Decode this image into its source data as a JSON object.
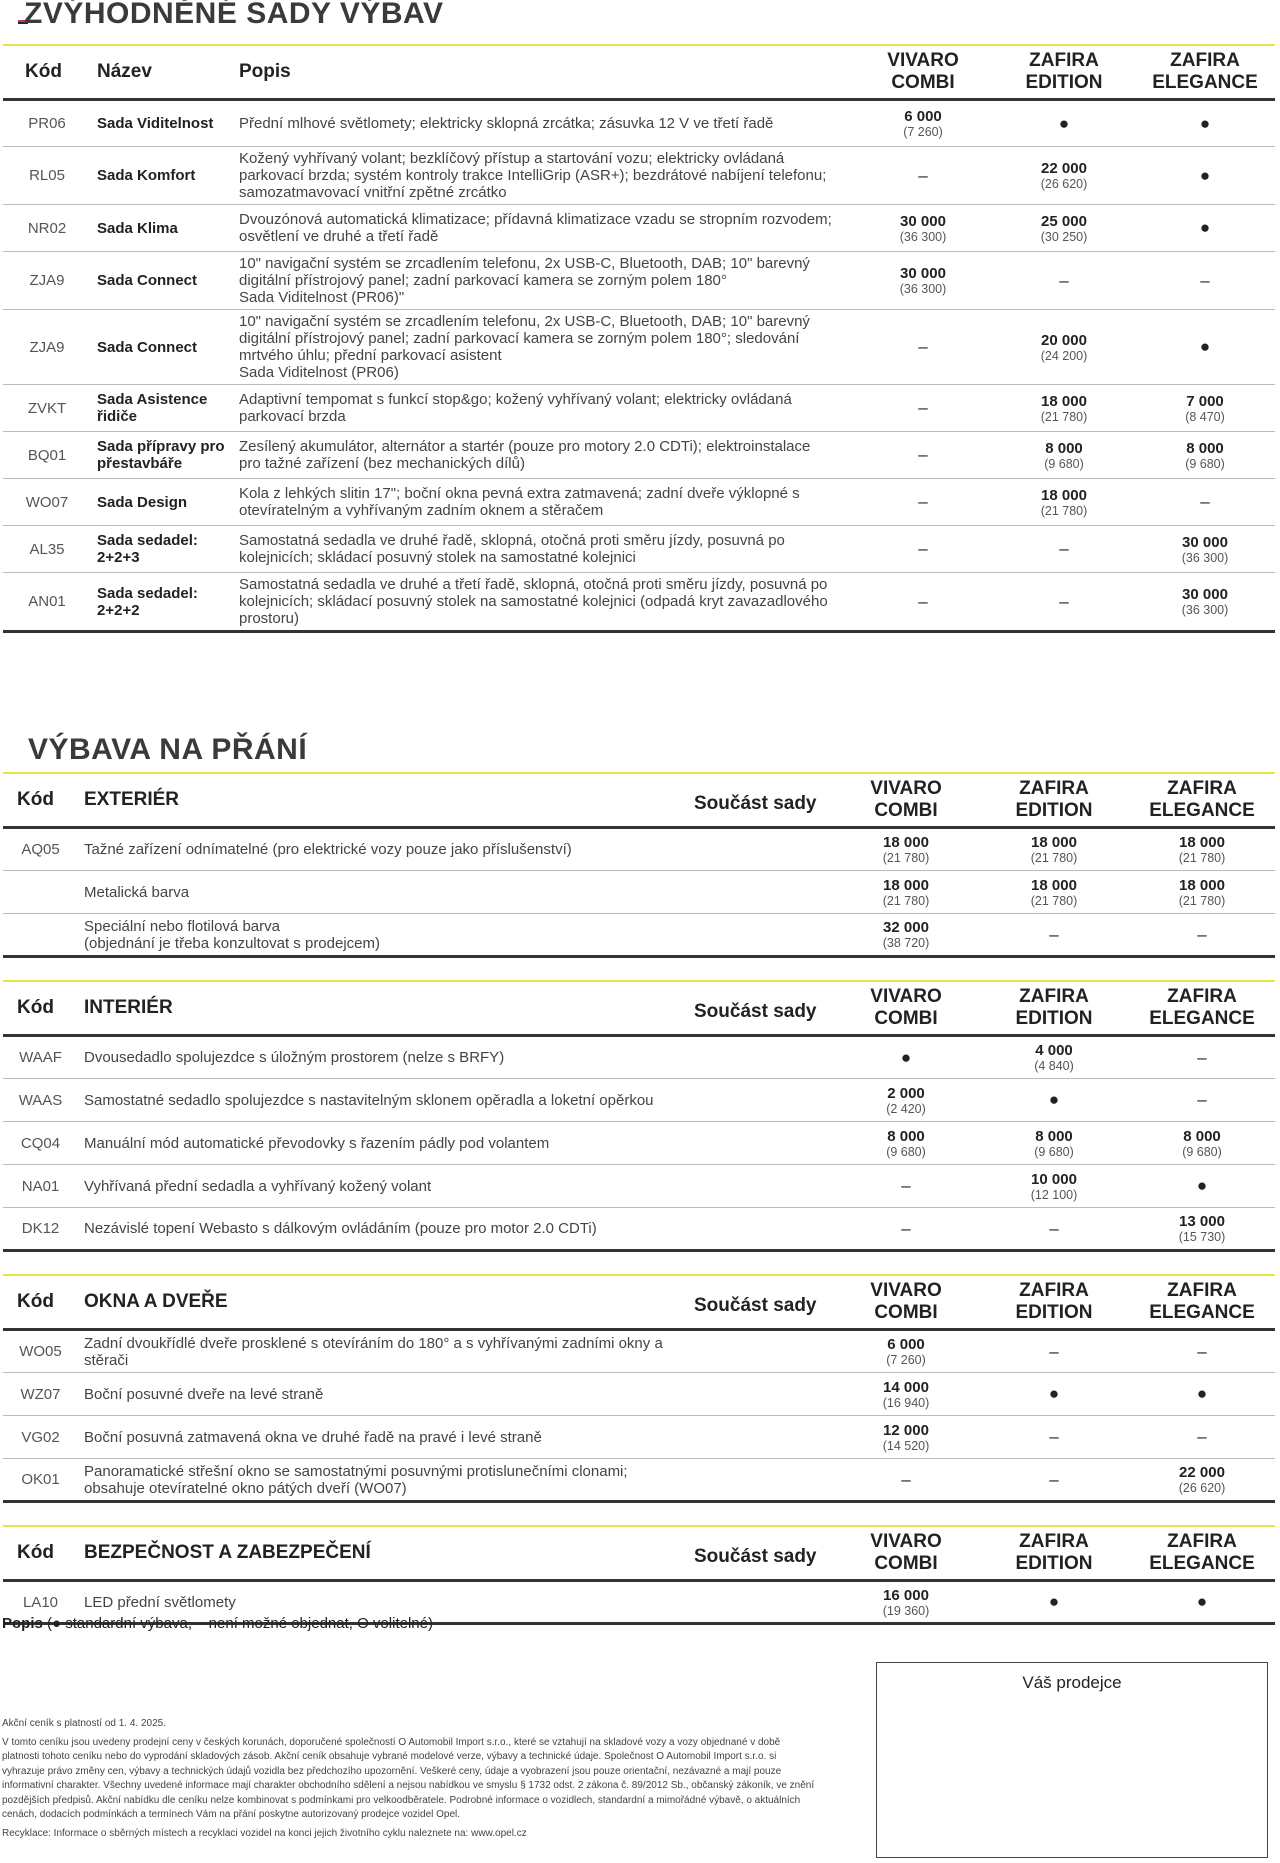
{
  "sets": {
    "title": "ZVÝHODNĚNÉ SADY VÝBAV",
    "headers": [
      "Kód",
      "Název",
      "Popis",
      "VIVARO COMBI",
      "ZAFIRA EDITION",
      "ZAFIRA ELEGANCE"
    ],
    "rows": [
      {
        "code": "PR06",
        "name": "Sada Viditelnost",
        "desc": "Přední mlhové světlomety; elektricky sklopná zrcátka; zásuvka 12 V ve třetí řadě",
        "cells": [
          {
            "price": "6 000",
            "vat": "(7 260)"
          },
          "●",
          "●"
        ]
      },
      {
        "code": "RL05",
        "name": "Sada Komfort",
        "desc": "Kožený vyhřívaný volant; bezklíčový přístup a startování vozu; elektricky ovládaná parkovací brzda; systém kontroly trakce IntelliGrip (ASR+); bezdrátové nabíjení telefonu; samozatmavovací vnitřní zpětné zrcátko",
        "cells": [
          "–",
          {
            "price": "22 000",
            "vat": "(26 620)"
          },
          "●"
        ]
      },
      {
        "code": "NR02",
        "name": "Sada Klima",
        "desc": "Dvouzónová automatická klimatizace; přídavná klimatizace vzadu se stropním rozvodem; osvětlení ve druhé a třetí řadě",
        "cells": [
          {
            "price": "30 000",
            "vat": "(36 300)"
          },
          {
            "price": "25 000",
            "vat": "(30 250)"
          },
          "●"
        ]
      },
      {
        "code": "ZJA9",
        "name": "Sada Connect",
        "desc": "10\" navigační systém se zrcadlením telefonu, 2x USB-C, Bluetooth, DAB; 10\" barevný digitální přístrojový panel; zadní parkovací kamera se zorným polem 180°\nSada Viditelnost (PR06)\"",
        "cells": [
          {
            "price": "30 000",
            "vat": "(36 300)"
          },
          "–",
          "–"
        ]
      },
      {
        "code": "ZJA9",
        "name": "Sada Connect",
        "desc": "10\" navigační systém se zrcadlením telefonu, 2x USB-C, Bluetooth, DAB; 10\" barevný digitální přístrojový panel; zadní parkovací kamera se zorným polem 180°; sledování mrtvého úhlu; přední parkovací asistent\nSada Viditelnost (PR06)",
        "cells": [
          "–",
          {
            "price": "20 000",
            "vat": "(24 200)"
          },
          "●"
        ]
      },
      {
        "code": "ZVKT",
        "name": "Sada Asistence řidiče",
        "desc": "Adaptivní tempomat s funkcí stop&go; kožený vyhřívaný volant; elektricky ovládaná parkovací brzda",
        "cells": [
          "–",
          {
            "price": "18 000",
            "vat": "(21 780)"
          },
          {
            "price": "7 000",
            "vat": "(8 470)"
          }
        ]
      },
      {
        "code": "BQ01",
        "name": "Sada přípravy pro přestavbáře",
        "desc": "Zesílený akumulátor, alternátor a startér (pouze pro motory 2.0 CDTi); elektroinstalace pro tažné zařízení (bez mechanických dílů)",
        "cells": [
          "–",
          {
            "price": "8 000",
            "vat": "(9 680)"
          },
          {
            "price": "8 000",
            "vat": "(9 680)"
          }
        ]
      },
      {
        "code": "WO07",
        "name": "Sada Design",
        "desc": "Kola z lehkých slitin 17\"; boční okna pevná extra zatmavená; zadní dveře výklopné s otevíratelným a vyhřívaným zadním oknem a stěračem",
        "cells": [
          "–",
          {
            "price": "18 000",
            "vat": "(21 780)"
          },
          "–"
        ]
      },
      {
        "code": "AL35",
        "name": "Sada sedadel: 2+2+3",
        "desc": "Samostatná sedadla ve druhé řadě, sklopná, otočná proti směru jízdy, posuvná po kolejnicích; skládací posuvný stolek na samostatné kolejnici",
        "cells": [
          "–",
          "–",
          {
            "price": "30 000",
            "vat": "(36 300)"
          }
        ]
      },
      {
        "code": "AN01",
        "name": "Sada sedadel: 2+2+2",
        "desc": "Samostatná sedadla ve druhé a třetí řadě, sklopná, otočná proti směru jízdy, posuvná po kolejnicích; skládací posuvný stolek na samostatné kolejnici (odpadá kryt zavazadlového prostoru)",
        "cells": [
          "–",
          "–",
          {
            "price": "30 000",
            "vat": "(36 300)"
          }
        ]
      }
    ]
  },
  "options": {
    "title": "VÝBAVA NA PŘÁNÍ",
    "columns": [
      "Kód",
      "Součást sady",
      "VIVARO COMBI",
      "ZAFIRA EDITION",
      "ZAFIRA ELEGANCE"
    ],
    "sections": [
      {
        "title": "EXTERIÉR",
        "rows": [
          {
            "code": "AQ05",
            "desc": "Tažné zařízení odnímatelné (pro elektrické vozy pouze jako příslušenství)",
            "cells": [
              {
                "price": "18 000",
                "vat": "(21 780)"
              },
              {
                "price": "18 000",
                "vat": "(21 780)"
              },
              {
                "price": "18 000",
                "vat": "(21 780)"
              }
            ]
          },
          {
            "desc": "Metalická barva",
            "cells": [
              {
                "price": "18 000",
                "vat": "(21 780)"
              },
              {
                "price": "18 000",
                "vat": "(21 780)"
              },
              {
                "price": "18 000",
                "vat": "(21 780)"
              }
            ]
          },
          {
            "desc": "Speciální nebo flotilová barva\n(objednání je třeba konzultovat s prodejcem)",
            "cells": [
              {
                "price": "32 000",
                "vat": "(38 720)"
              },
              "–",
              "–"
            ]
          }
        ]
      },
      {
        "title": "INTERIÉR",
        "rows": [
          {
            "code": "WAAF",
            "desc": "Dvousedadlo spolujezdce s úložným prostorem (nelze s BRFY)",
            "cells": [
              "●",
              {
                "price": "4 000",
                "vat": "(4 840)"
              },
              "–"
            ]
          },
          {
            "code": "WAAS",
            "desc": "Samostatné sedadlo spolujezdce s nastavitelným sklonem opěradla a loketní opěrkou",
            "cells": [
              {
                "price": "2 000",
                "vat": "(2 420)"
              },
              "●",
              "–"
            ]
          },
          {
            "code": "CQ04",
            "desc": "Manuální mód automatické převodovky s řazením pádly pod volantem",
            "cells": [
              {
                "price": "8 000",
                "vat": "(9 680)"
              },
              {
                "price": "8 000",
                "vat": "(9 680)"
              },
              {
                "price": "8 000",
                "vat": "(9 680)"
              }
            ]
          },
          {
            "code": "NA01",
            "desc": "Vyhřívaná přední sedadla a vyhřívaný kožený volant",
            "cells": [
              "–",
              {
                "price": "10 000",
                "vat": "(12 100)"
              },
              "●"
            ]
          },
          {
            "code": "DK12",
            "desc": "Nezávislé topení Webasto s dálkovým ovládáním (pouze pro motor 2.0 CDTi)",
            "cells": [
              "–",
              "–",
              {
                "price": "13 000",
                "vat": "(15 730)"
              }
            ]
          }
        ]
      },
      {
        "title": "OKNA A DVEŘE",
        "rows": [
          {
            "code": "WO05",
            "desc": "Zadní dvoukřídlé dveře prosklené s otevíráním do 180° a s vyhřívanými zadními okny a stěrači",
            "cells": [
              {
                "price": "6 000",
                "vat": "(7 260)"
              },
              "–",
              "–"
            ]
          },
          {
            "code": "WZ07",
            "desc": "Boční posuvné dveře na levé straně",
            "cells": [
              {
                "price": "14 000",
                "vat": "(16 940)"
              },
              "●",
              "●"
            ]
          },
          {
            "code": "VG02",
            "desc": "Boční posuvná zatmavená okna ve druhé řadě na pravé i levé straně",
            "cells": [
              {
                "price": "12 000",
                "vat": "(14 520)"
              },
              "–",
              "–"
            ]
          },
          {
            "code": "OK01",
            "desc": "Panoramatické střešní okno se samostatnými posuvnými protislunečními clonami; obsahuje otevíratelné okno pátých dveří (WO07)",
            "cells": [
              "–",
              "–",
              {
                "price": "22 000",
                "vat": "(26 620)"
              }
            ]
          }
        ]
      },
      {
        "title": "BEZPEČNOST A ZABEZPEČENÍ",
        "rows": [
          {
            "code": "LA10",
            "desc": "LED přední světlomety",
            "cells": [
              {
                "price": "16 000",
                "vat": "(19 360)"
              },
              "●",
              "●"
            ]
          }
        ]
      }
    ]
  },
  "legend": {
    "label": "Popis",
    "text": "(● standardní výbava, – není možné objednat, O volitelné)"
  },
  "dealer": "Váš prodejce",
  "footnotes": [
    "Akční ceník s platností od 1. 4. 2025.",
    "V tomto ceníku jsou uvedeny prodejní ceny v českých korunách, doporučené společností O Automobil Import s.r.o., které se vztahují na skladové vozy a vozy objednané v době platnosti tohoto ceníku nebo do vyprodání skladových zásob. Akční ceník obsahuje vybrané modelové verze, výbavy a technické údaje. Společnost O Automobil Import s.r.o. si vyhrazuje právo změny cen, výbavy a technických údajů vozidla bez předchozího upozornění. Veškeré ceny, údaje a vyobrazení jsou pouze orientační, nezávazné a mají pouze informativní charakter. Všechny uvedené informace mají charakter obchodního sdělení a nejsou nabídkou ve smyslu § 1732 odst. 2 zákona č. 89/2012 Sb., občanský zákoník, ve znění pozdějších předpisů. Akční nabídku dle ceníku nelze kombinovat s podmínkami pro velkoodběratele. Podrobné informace o vozidlech, standardní a mimořádné výbavě, o aktuálních cenách, dodacích podmínkách a termínech Vám na přání poskytne autorizovaný prodejce vozidel Opel.",
    "Recyklace: Informace o sběrných místech a recyklaci vozidel na konci jejich životního cyklu naleznete na: www.opel.cz"
  ]
}
